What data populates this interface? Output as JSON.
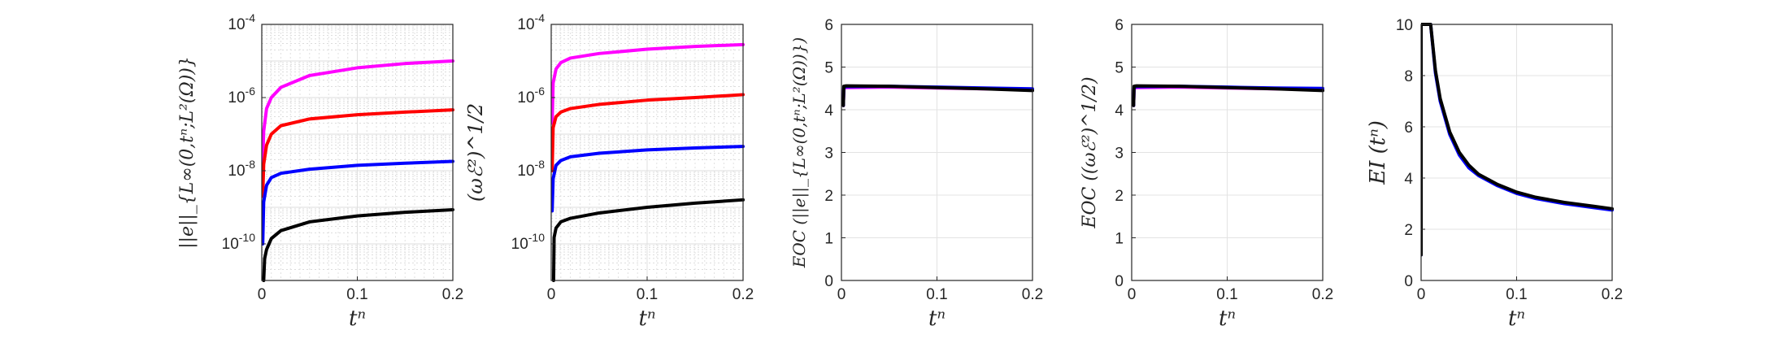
{
  "chart_data": [
    {
      "type": "line",
      "ylabel": "||e||_{L∞(0,tⁿ;L²(Ω))}",
      "xlabel": "tⁿ",
      "xlim": [
        0,
        0.2
      ],
      "ylim": [
        1e-11,
        0.0001
      ],
      "yscale": "log",
      "xticks": [
        "0",
        "0.1",
        "0.2"
      ],
      "yticks": [
        {
          "base": "10",
          "exp": "-10",
          "v": 1e-10
        },
        {
          "base": "10",
          "exp": "-8",
          "v": 1e-08
        },
        {
          "base": "10",
          "exp": "-6",
          "v": 1e-06
        },
        {
          "base": "10",
          "exp": "-4",
          "v": 0.0001
        }
      ],
      "grid": true,
      "series": [
        {
          "color": "#ff00ff",
          "x": [
            0.001,
            0.002,
            0.005,
            0.01,
            0.02,
            0.05,
            0.1,
            0.15,
            0.2
          ],
          "y": [
            1.5e-08,
            1.2e-07,
            5e-07,
            1e-06,
            1.9e-06,
            4e-06,
            6.5e-06,
            8.5e-06,
            1e-05
          ]
        },
        {
          "color": "#ff0000",
          "x": [
            0.001,
            0.002,
            0.005,
            0.01,
            0.02,
            0.05,
            0.1,
            0.15,
            0.2
          ],
          "y": [
            2e-09,
            1.5e-08,
            5e-08,
            1e-07,
            1.7e-07,
            2.6e-07,
            3.4e-07,
            4e-07,
            4.6e-07
          ]
        },
        {
          "color": "#0000ff",
          "x": [
            0.001,
            0.002,
            0.005,
            0.01,
            0.02,
            0.05,
            0.1,
            0.15,
            0.2
          ],
          "y": [
            1e-10,
            1.4e-09,
            4e-09,
            6.5e-09,
            8.5e-09,
            1.1e-08,
            1.4e-08,
            1.6e-08,
            1.8e-08
          ]
        },
        {
          "color": "#000000",
          "x": [
            0.002,
            0.003,
            0.005,
            0.01,
            0.02,
            0.05,
            0.1,
            0.15,
            0.2
          ],
          "y": [
            1e-11,
            4e-11,
            7e-11,
            1.4e-10,
            2.3e-10,
            4e-10,
            5.8e-10,
            7.3e-10,
            8.6e-10
          ]
        }
      ]
    },
    {
      "type": "line",
      "ylabel": "(ωℰ²)^1/2",
      "xlabel": "tⁿ",
      "xlim": [
        0,
        0.2
      ],
      "ylim": [
        1e-11,
        0.0001
      ],
      "yscale": "log",
      "xticks": [
        "0",
        "0.1",
        "0.2"
      ],
      "yticks": [
        {
          "base": "10",
          "exp": "-10",
          "v": 1e-10
        },
        {
          "base": "10",
          "exp": "-8",
          "v": 1e-08
        },
        {
          "base": "10",
          "exp": "-6",
          "v": 1e-06
        },
        {
          "base": "10",
          "exp": "-4",
          "v": 0.0001
        }
      ],
      "grid": true,
      "series": [
        {
          "color": "#ff00ff",
          "x": [
            0.001,
            0.002,
            0.005,
            0.01,
            0.02,
            0.05,
            0.1,
            0.15,
            0.2
          ],
          "y": [
            2e-07,
            2.5e-06,
            6e-06,
            9e-06,
            1.2e-05,
            1.6e-05,
            2.1e-05,
            2.5e-05,
            2.8e-05
          ]
        },
        {
          "color": "#ff0000",
          "x": [
            0.001,
            0.002,
            0.005,
            0.01,
            0.02,
            0.05,
            0.1,
            0.15,
            0.2
          ],
          "y": [
            1e-08,
            1.5e-07,
            3e-07,
            4e-07,
            5e-07,
            6.5e-07,
            8.5e-07,
            1e-06,
            1.2e-06
          ]
        },
        {
          "color": "#0000ff",
          "x": [
            0.001,
            0.002,
            0.005,
            0.01,
            0.02,
            0.05,
            0.1,
            0.15,
            0.2
          ],
          "y": [
            8e-10,
            6e-09,
            1.4e-08,
            1.9e-08,
            2.4e-08,
            3e-08,
            3.7e-08,
            4.2e-08,
            4.6e-08
          ]
        },
        {
          "color": "#000000",
          "x": [
            0.0025,
            0.003,
            0.005,
            0.01,
            0.02,
            0.05,
            0.1,
            0.15,
            0.2
          ],
          "y": [
            1e-11,
            1.5e-10,
            2.7e-10,
            4e-10,
            5e-10,
            7e-10,
            1e-09,
            1.3e-09,
            1.6e-09
          ]
        }
      ]
    },
    {
      "type": "line",
      "ylabel": "EOC (||e||_{L∞(0,tⁿ;L²(Ω))})",
      "xlabel": "tⁿ",
      "xlim": [
        0,
        0.2
      ],
      "ylim": [
        0,
        6
      ],
      "xticks": [
        "0",
        "0.1",
        "0.2"
      ],
      "yticks": [
        "0",
        "1",
        "2",
        "3",
        "4",
        "5",
        "6"
      ],
      "grid": true,
      "series": [
        {
          "color": "#ff00ff",
          "x": [
            0.002,
            0.0025,
            0.005,
            0.05,
            0.1,
            0.15,
            0.2
          ],
          "y": [
            4.1,
            4.5,
            4.52,
            4.53,
            4.51,
            4.49,
            4.47
          ]
        },
        {
          "color": "#0000ff",
          "x": [
            0.002,
            0.0025,
            0.005,
            0.05,
            0.1,
            0.15,
            0.2
          ],
          "y": [
            4.1,
            4.52,
            4.54,
            4.55,
            4.53,
            4.51,
            4.49
          ]
        },
        {
          "color": "#000000",
          "x": [
            0.002,
            0.0025,
            0.005,
            0.05,
            0.1,
            0.15,
            0.2
          ],
          "y": [
            4.1,
            4.55,
            4.56,
            4.55,
            4.52,
            4.49,
            4.45
          ]
        }
      ]
    },
    {
      "type": "line",
      "ylabel": "EOC ((ωℰ²)^1/2)",
      "xlabel": "tⁿ",
      "xlim": [
        0,
        0.2
      ],
      "ylim": [
        0,
        6
      ],
      "xticks": [
        "0",
        "0.1",
        "0.2"
      ],
      "yticks": [
        "0",
        "1",
        "2",
        "3",
        "4",
        "5",
        "6"
      ],
      "grid": true,
      "series": [
        {
          "color": "#ff00ff",
          "x": [
            0.002,
            0.0025,
            0.005,
            0.05,
            0.1,
            0.15,
            0.2
          ],
          "y": [
            4.1,
            4.5,
            4.52,
            4.53,
            4.51,
            4.49,
            4.47
          ]
        },
        {
          "color": "#0000ff",
          "x": [
            0.002,
            0.0025,
            0.005,
            0.05,
            0.1,
            0.15,
            0.2
          ],
          "y": [
            4.1,
            4.52,
            4.54,
            4.55,
            4.53,
            4.51,
            4.5
          ]
        },
        {
          "color": "#000000",
          "x": [
            0.002,
            0.0025,
            0.005,
            0.05,
            0.1,
            0.15,
            0.2
          ],
          "y": [
            4.1,
            4.55,
            4.56,
            4.55,
            4.52,
            4.49,
            4.45
          ]
        }
      ]
    },
    {
      "type": "line",
      "ylabel": "EI (tⁿ)",
      "xlabel": "tⁿ",
      "xlim": [
        0,
        0.2
      ],
      "ylim": [
        0,
        10
      ],
      "xticks": [
        "0",
        "0.1",
        "0.2"
      ],
      "yticks": [
        "0",
        "2",
        "4",
        "6",
        "8",
        "10"
      ],
      "grid": true,
      "series": [
        {
          "color": "#0000ff",
          "x": [
            0.0,
            0.0,
            0.01,
            0.015,
            0.02,
            0.03,
            0.04,
            0.05,
            0.06,
            0.08,
            0.1,
            0.12,
            0.15,
            0.18,
            0.2
          ],
          "y": [
            1.0,
            10.0,
            10.0,
            8.1,
            7.0,
            5.7,
            4.9,
            4.4,
            4.1,
            3.7,
            3.4,
            3.2,
            3.0,
            2.85,
            2.75
          ]
        },
        {
          "color": "#000000",
          "x": [
            0.0,
            0.0,
            0.01,
            0.015,
            0.02,
            0.03,
            0.04,
            0.05,
            0.06,
            0.08,
            0.1,
            0.12,
            0.15,
            0.18,
            0.2
          ],
          "y": [
            1.0,
            10.0,
            10.0,
            8.2,
            7.1,
            5.8,
            5.0,
            4.5,
            4.15,
            3.75,
            3.45,
            3.25,
            3.05,
            2.9,
            2.8
          ]
        }
      ]
    }
  ]
}
